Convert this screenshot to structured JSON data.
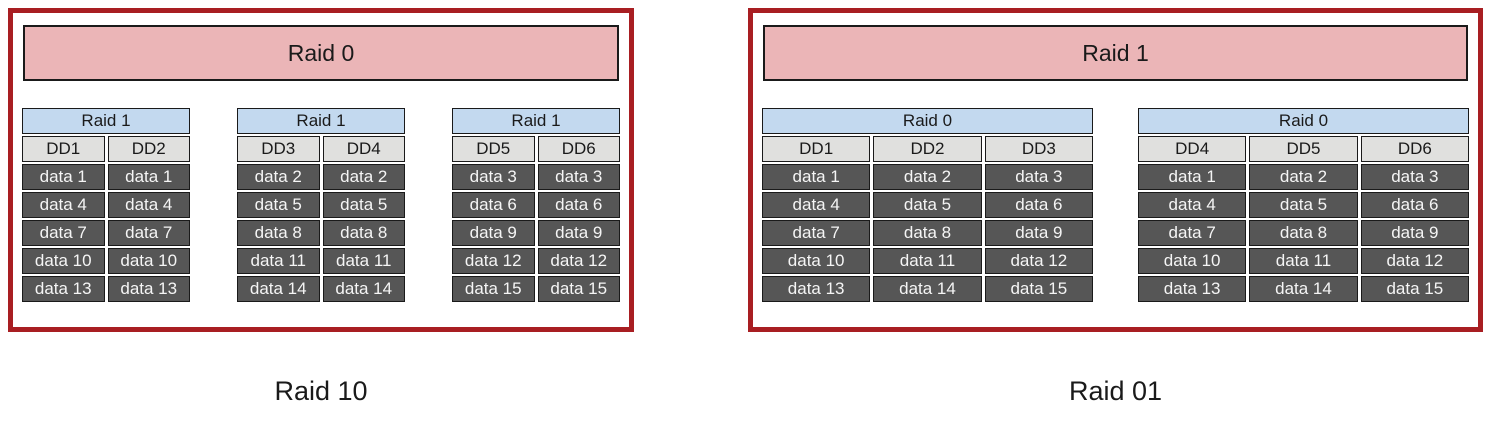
{
  "colors": {
    "outer_border": "#a81e22",
    "banner_bg": "#ebb5b7",
    "subheader_bg": "#c3d9ef",
    "dd_bg": "#e0e0de",
    "cell_bg": "#565656",
    "cell_text": "#f5f5f5",
    "line": "#1a1a1a",
    "page_bg": "#ffffff"
  },
  "diagrams": [
    {
      "banner": "Raid 0",
      "caption": "Raid 10",
      "tables": [
        {
          "header": "Raid 1",
          "columns": [
            "DD1",
            "DD2"
          ],
          "rows": [
            [
              "data 1",
              "data 1"
            ],
            [
              "data 4",
              "data 4"
            ],
            [
              "data 7",
              "data 7"
            ],
            [
              "data 10",
              "data 10"
            ],
            [
              "data 13",
              "data 13"
            ]
          ]
        },
        {
          "header": "Raid 1",
          "columns": [
            "DD3",
            "DD4"
          ],
          "rows": [
            [
              "data 2",
              "data 2"
            ],
            [
              "data 5",
              "data 5"
            ],
            [
              "data 8",
              "data 8"
            ],
            [
              "data 11",
              "data 11"
            ],
            [
              "data 14",
              "data 14"
            ]
          ]
        },
        {
          "header": "Raid 1",
          "columns": [
            "DD5",
            "DD6"
          ],
          "rows": [
            [
              "data 3",
              "data 3"
            ],
            [
              "data 6",
              "data 6"
            ],
            [
              "data 9",
              "data 9"
            ],
            [
              "data 12",
              "data 12"
            ],
            [
              "data 15",
              "data 15"
            ]
          ]
        }
      ]
    },
    {
      "banner": "Raid 1",
      "caption": "Raid 01",
      "tables": [
        {
          "header": "Raid 0",
          "columns": [
            "DD1",
            "DD2",
            "DD3"
          ],
          "rows": [
            [
              "data 1",
              "data 2",
              "data 3"
            ],
            [
              "data 4",
              "data 5",
              "data 6"
            ],
            [
              "data 7",
              "data 8",
              "data 9"
            ],
            [
              "data 10",
              "data 11",
              "data 12"
            ],
            [
              "data 13",
              "data 14",
              "data 15"
            ]
          ]
        },
        {
          "header": "Raid 0",
          "columns": [
            "DD4",
            "DD5",
            "DD6"
          ],
          "rows": [
            [
              "data 1",
              "data 2",
              "data 3"
            ],
            [
              "data 4",
              "data 5",
              "data 6"
            ],
            [
              "data 7",
              "data 8",
              "data 9"
            ],
            [
              "data 10",
              "data 11",
              "data 12"
            ],
            [
              "data 13",
              "data 14",
              "data 15"
            ]
          ]
        }
      ]
    }
  ]
}
